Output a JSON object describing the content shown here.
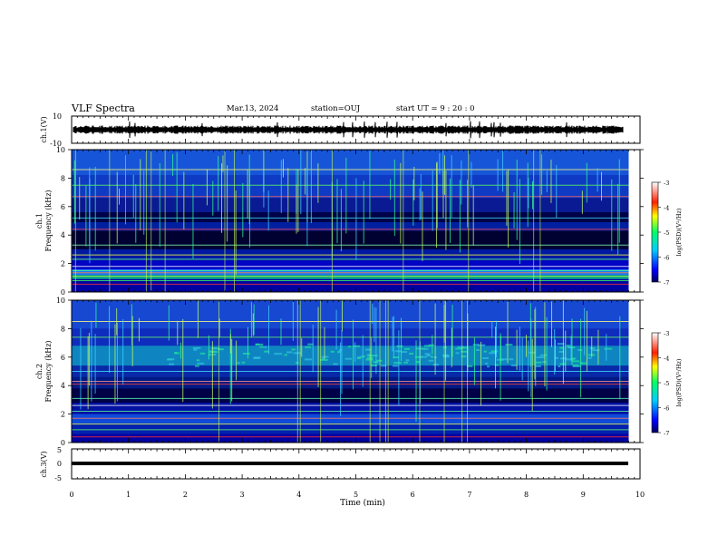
{
  "header": {
    "title": "VLF Spectra",
    "date": "Mar.13, 2024",
    "station": "station=OUJ",
    "start": "start  UT  =   9  : 20 : 0"
  },
  "chart_data": [
    {
      "type": "line",
      "panel": "ch1-waveform",
      "ylabel": "ch.1(V)",
      "ylim": [
        -10,
        10
      ],
      "ytick_labels": [
        "10",
        "-10"
      ],
      "xlim": [
        0,
        10
      ]
    },
    {
      "type": "heatmap",
      "panel": "ch1-spectrogram",
      "ylabel": "ch.1\nFrequency (kHz)",
      "ylim": [
        0,
        10
      ],
      "yticks": [
        0,
        2,
        4,
        6,
        8,
        10
      ],
      "xlim": [
        0,
        9.8
      ],
      "colorbar": {
        "label": "log(PSD)(V²/Hz)",
        "range": [
          -7,
          -3
        ],
        "ticks": [
          "-3",
          "-4",
          "-5",
          "-6",
          "-7"
        ]
      }
    },
    {
      "type": "heatmap",
      "panel": "ch2-spectrogram",
      "ylabel": "ch.2\nFrequency (kHz)",
      "ylim": [
        0,
        10
      ],
      "yticks": [
        0,
        2,
        4,
        6,
        8,
        10
      ],
      "xlim": [
        0,
        9.8
      ],
      "colorbar": {
        "label": "log(PSD)(V²/Hz)",
        "range": [
          -7,
          -3
        ],
        "ticks": [
          "-3",
          "-4",
          "-5",
          "-6",
          "-7"
        ]
      }
    },
    {
      "type": "line",
      "panel": "ch3-waveform",
      "ylabel": "ch.3(V)",
      "ylim": [
        -5,
        5
      ],
      "ytick_labels": [
        "5",
        "0",
        "-5"
      ],
      "xlabel": "Time (min)",
      "xticks": [
        0,
        1,
        2,
        3,
        4,
        5,
        6,
        7,
        8,
        9,
        10
      ],
      "xlim": [
        0,
        10
      ]
    }
  ],
  "colors": {
    "low": "#00007a",
    "mid": "#00cc88",
    "high": "#ff0000",
    "trace": "#000000"
  }
}
